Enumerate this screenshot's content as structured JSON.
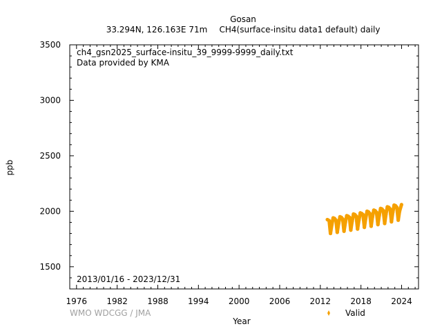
{
  "chart_data": {
    "type": "scatter",
    "title": "Gosan",
    "subtitle_location": "33.294N, 126.163E 71m",
    "subtitle_dataset": "CH4(surface-insitu data1 default) daily",
    "file_label": "ch4_gsn2025_surface-insitu_39_9999-9999_daily.txt",
    "provider_label": "Data provided by KMA",
    "date_range_label": "2013/01/16 - 2023/12/31",
    "xlabel": "Year",
    "ylabel": "ppb",
    "xlim": [
      1975,
      2026.5
    ],
    "ylim": [
      1300,
      3500
    ],
    "x_ticks": [
      1976,
      1982,
      1988,
      1994,
      2000,
      2006,
      2012,
      2018,
      2024
    ],
    "y_ticks": [
      1500,
      2000,
      2500,
      3000,
      3500
    ],
    "grid": false,
    "legend_position": "bottom-right",
    "series": [
      {
        "name": "Valid",
        "color": "#f5a000",
        "x": [
          2013.04,
          2013.3,
          2013.5,
          2013.7,
          2013.9,
          2014.1,
          2014.3,
          2014.5,
          2014.7,
          2014.9,
          2015.1,
          2015.3,
          2015.5,
          2015.7,
          2015.9,
          2016.1,
          2016.3,
          2016.5,
          2016.7,
          2016.9,
          2017.1,
          2017.3,
          2017.5,
          2017.7,
          2017.9,
          2018.1,
          2018.3,
          2018.5,
          2018.7,
          2018.9,
          2019.1,
          2019.3,
          2019.5,
          2019.7,
          2019.9,
          2020.1,
          2020.3,
          2020.5,
          2020.7,
          2020.9,
          2021.1,
          2021.3,
          2021.5,
          2021.7,
          2021.9,
          2022.1,
          2022.3,
          2022.5,
          2022.7,
          2022.9,
          2023.1,
          2023.3,
          2023.5,
          2023.7,
          2023.99
        ],
        "values": [
          1925,
          1915,
          1800,
          1880,
          1940,
          1935,
          1920,
          1810,
          1890,
          1950,
          1945,
          1930,
          1820,
          1900,
          1960,
          1955,
          1945,
          1830,
          1910,
          1975,
          1970,
          1955,
          1840,
          1920,
          1985,
          1980,
          1970,
          1855,
          1935,
          2000,
          1995,
          1980,
          1865,
          1950,
          2010,
          2005,
          1990,
          1880,
          1960,
          2025,
          2020,
          2005,
          1890,
          1975,
          2040,
          2035,
          2020,
          1905,
          1990,
          2055,
          2050,
          2035,
          1920,
          2000,
          2060
        ]
      }
    ]
  },
  "credit": "WMO WDCGG / JMA"
}
